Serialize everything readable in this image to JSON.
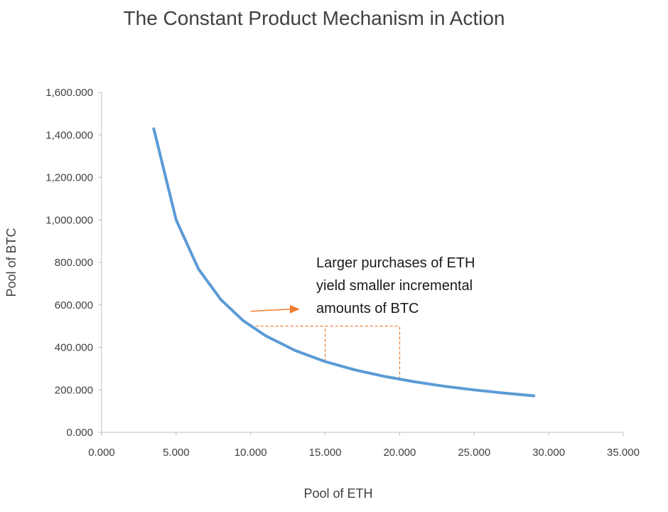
{
  "chart_data": {
    "type": "line",
    "title": "The Constant Product Mechanism in Action",
    "xlabel": "Pool of ETH",
    "ylabel": "Pool of BTC",
    "xlim": [
      0,
      35
    ],
    "ylim": [
      0,
      1600
    ],
    "x_ticks": [
      "0.000",
      "5.000",
      "10.000",
      "15.000",
      "20.000",
      "25.000",
      "30.000",
      "35.000"
    ],
    "y_ticks": [
      "0.000",
      "200.000",
      "400.000",
      "600.000",
      "800.000",
      "1,000.000",
      "1,200.000",
      "1,400.000",
      "1,600.000"
    ],
    "grid": false,
    "series": [
      {
        "color": "#5b9bd5",
        "x": [
          3.5,
          5,
          6.5,
          8,
          9.5,
          11,
          13,
          15,
          17,
          19,
          21,
          23,
          25,
          27,
          29
        ],
        "y": [
          1429,
          1000,
          769,
          625,
          526,
          455,
          385,
          333,
          294,
          263,
          238,
          217,
          200,
          185,
          172
        ]
      }
    ],
    "annotation": {
      "lines": [
        "Larger purchases of ETH",
        "yield smaller incremental",
        "amounts of BTC"
      ],
      "color": "#ed7d31",
      "arrow": {
        "from": [
          10,
          570
        ],
        "to": [
          13.3,
          580
        ]
      },
      "dashed_guides": {
        "horizontal": {
          "x": [
            10,
            20
          ],
          "y": 500
        },
        "verticals": [
          {
            "x": 15,
            "y": [
              333,
              500
            ]
          },
          {
            "x": 20,
            "y": [
              250,
              500
            ]
          }
        ]
      }
    }
  }
}
